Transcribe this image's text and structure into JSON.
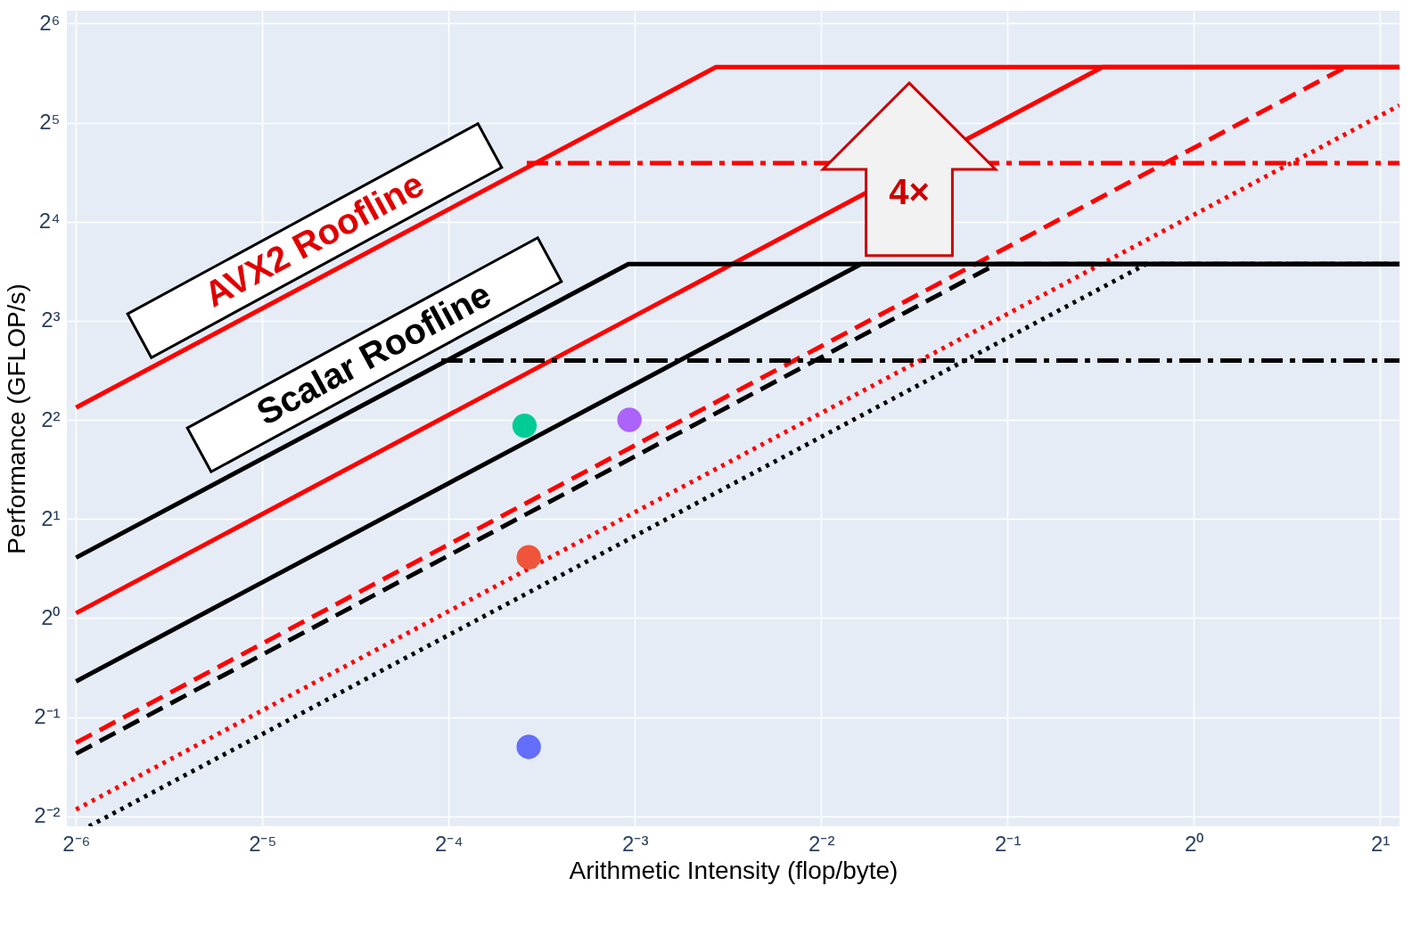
{
  "chart_data": {
    "type": "line",
    "xlabel": "Arithmetic Intensity (flop/byte)",
    "ylabel": "Performance (GFLOP/s)",
    "log": "xy",
    "grid": true,
    "xlim": [
      0.0151,
      2.15
    ],
    "ylim": [
      0.233,
      70
    ],
    "xticks": [
      {
        "value": 0.015625,
        "label": "2⁻⁶"
      },
      {
        "value": 0.03125,
        "label": "2⁻⁵"
      },
      {
        "value": 0.0625,
        "label": "2⁻⁴"
      },
      {
        "value": 0.125,
        "label": "2⁻³"
      },
      {
        "value": 0.25,
        "label": "2⁻²"
      },
      {
        "value": 0.5,
        "label": "2⁻¹"
      },
      {
        "value": 1,
        "label": "2⁰"
      },
      {
        "value": 2,
        "label": "2¹"
      }
    ],
    "yticks": [
      {
        "value": 0.25,
        "label": "2⁻²"
      },
      {
        "value": 0.5,
        "label": "2⁻¹"
      },
      {
        "value": 1,
        "label": "2⁰"
      },
      {
        "value": 2,
        "label": "2¹"
      },
      {
        "value": 4,
        "label": "2²"
      },
      {
        "value": 8,
        "label": "2³"
      },
      {
        "value": 16,
        "label": "2⁴"
      },
      {
        "value": 32,
        "label": "2⁵"
      },
      {
        "value": 64,
        "label": "2⁶"
      }
    ],
    "series": [
      {
        "color": "#ff0000",
        "line_style": "solid",
        "x": [
          0.015625,
          0.169,
          2.15
        ],
        "values": [
          4.36,
          47.2,
          47.2
        ]
      },
      {
        "color": "#ff0000",
        "line_style": "solid",
        "x": [
          0.015625,
          0.712,
          2.15
        ],
        "values": [
          1.035,
          47.2,
          47.2
        ]
      },
      {
        "color": "#ff0000",
        "line_style": "dashed",
        "x": [
          0.015625,
          1.76
        ],
        "values": [
          0.418,
          47.2
        ]
      },
      {
        "color": "#ff0000",
        "line_style": "dotted",
        "x": [
          0.015625,
          2.15
        ],
        "values": [
          0.262,
          36.1
        ]
      },
      {
        "color": "#ff0000",
        "line_style": "dashdot",
        "x": [
          0.0836,
          2.15
        ],
        "values": [
          24.1,
          24.1
        ]
      },
      {
        "color": "#000000",
        "line_style": "solid",
        "x": [
          0.015625,
          0.122,
          2.15
        ],
        "values": [
          1.526,
          11.9,
          11.9
        ]
      },
      {
        "color": "#000000",
        "line_style": "solid",
        "x": [
          0.015625,
          0.29,
          2.15
        ],
        "values": [
          0.642,
          11.9,
          11.9
        ]
      },
      {
        "color": "#000000",
        "line_style": "dashed",
        "x": [
          0.015625,
          0.48,
          2.15
        ],
        "values": [
          0.387,
          11.9,
          11.9
        ]
      },
      {
        "color": "#000000",
        "line_style": "dotted",
        "x": [
          0.0164,
          0.838,
          2.15
        ],
        "values": [
          0.233,
          11.9,
          11.9
        ]
      },
      {
        "color": "#000000",
        "line_style": "dashdot",
        "x": [
          0.0608,
          2.15
        ],
        "values": [
          6.06,
          6.06
        ]
      },
      {
        "type": "scatter",
        "marker": "circle",
        "x": [
          0.0829,
          0.1225,
          0.0842,
          0.0842
        ],
        "values": [
          3.84,
          4.0,
          1.53,
          0.406
        ],
        "colors": [
          "#00cc96",
          "#ab63fa",
          "#ef553b",
          "#636efa"
        ]
      }
    ],
    "annotations": [
      "AVX2 Roofline",
      "Scalar Roofline",
      "4×"
    ]
  }
}
